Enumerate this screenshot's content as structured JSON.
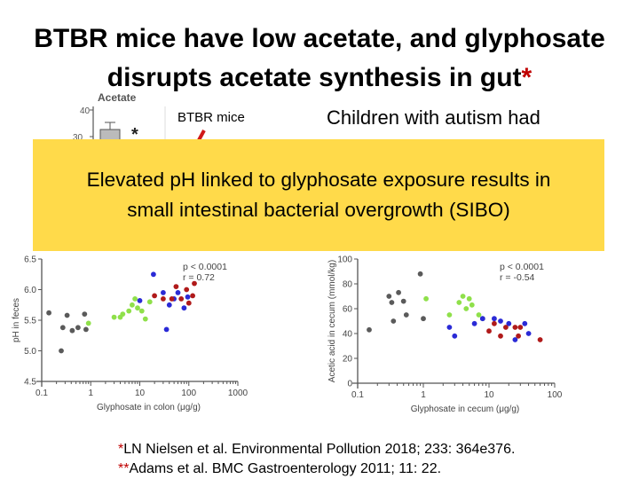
{
  "title": {
    "line1": "BTBR mice have low acetate, and glyphosate",
    "line2": "disrupts acetate synthesis in gut",
    "star": "*"
  },
  "inset": {
    "label": "Acetate",
    "yticks": [
      "40",
      "30"
    ],
    "marker": "*"
  },
  "btbr_label": "BTBR mice",
  "children_text": "Children with autism had",
  "banner": {
    "line1": "Elevated pH linked to glyphosate exposure results in",
    "line2": "small intestinal bacterial overgrowth (SIBO)"
  },
  "colors": {
    "gray": "#5a5a5a",
    "green": "#8fe04a",
    "blue": "#2a2ad6",
    "red": "#b01a1a",
    "banner": "#ffda4a",
    "accent": "#c00000"
  },
  "chart_data": [
    {
      "type": "scatter",
      "xlabel": "Glyphosate in colon (μg/g)",
      "ylabel": "pH in feces",
      "xscale": "log",
      "xlim": [
        0.1,
        1000
      ],
      "ylim": [
        4.5,
        6.5
      ],
      "xticks": [
        "0.1",
        "1",
        "10",
        "100",
        "1000"
      ],
      "yticks": [
        "4.5",
        "5.0",
        "5.5",
        "6.0",
        "6.5"
      ],
      "annotation": [
        "p < 0.0001",
        "r = 0.72"
      ],
      "series": [
        {
          "color": "gray",
          "points": [
            [
              0.14,
              5.62
            ],
            [
              0.27,
              5.38
            ],
            [
              0.33,
              5.58
            ],
            [
              0.42,
              5.33
            ],
            [
              0.55,
              5.38
            ],
            [
              0.75,
              5.6
            ],
            [
              0.8,
              5.35
            ],
            [
              0.25,
              5.0
            ]
          ]
        },
        {
          "color": "green",
          "points": [
            [
              0.9,
              5.45
            ],
            [
              3,
              5.55
            ],
            [
              4,
              5.55
            ],
            [
              4.5,
              5.6
            ],
            [
              6,
              5.65
            ],
            [
              7,
              5.75
            ],
            [
              8,
              5.85
            ],
            [
              9,
              5.7
            ],
            [
              11,
              5.65
            ],
            [
              13,
              5.52
            ],
            [
              16,
              5.8
            ]
          ]
        },
        {
          "color": "blue",
          "points": [
            [
              10,
              5.82
            ],
            [
              19,
              6.25
            ],
            [
              30,
              5.95
            ],
            [
              40,
              5.75
            ],
            [
              50,
              5.85
            ],
            [
              60,
              5.95
            ],
            [
              80,
              5.7
            ],
            [
              95,
              5.88
            ],
            [
              35,
              5.35
            ]
          ]
        },
        {
          "color": "red",
          "points": [
            [
              20,
              5.9
            ],
            [
              30,
              5.85
            ],
            [
              45,
              5.85
            ],
            [
              55,
              6.05
            ],
            [
              70,
              5.85
            ],
            [
              90,
              6.0
            ],
            [
              120,
              5.9
            ],
            [
              130,
              6.1
            ],
            [
              100,
              5.78
            ]
          ]
        }
      ]
    },
    {
      "type": "scatter",
      "xlabel": "Glyphosate in cecum (μg/g)",
      "ylabel": "Acetic acid in cecum (mmol/kg)",
      "xscale": "log",
      "xlim": [
        0.1,
        100
      ],
      "ylim": [
        0,
        100
      ],
      "xticks": [
        "0.1",
        "1",
        "10",
        "100"
      ],
      "yticks": [
        "0",
        "20",
        "40",
        "60",
        "80",
        "100"
      ],
      "annotation": [
        "p < 0.0001",
        "r = -0.54"
      ],
      "series": [
        {
          "color": "gray",
          "points": [
            [
              0.15,
              43
            ],
            [
              0.3,
              70
            ],
            [
              0.33,
              65
            ],
            [
              0.35,
              50
            ],
            [
              0.42,
              73
            ],
            [
              0.5,
              66
            ],
            [
              0.55,
              55
            ],
            [
              0.9,
              88
            ],
            [
              1,
              52
            ]
          ]
        },
        {
          "color": "green",
          "points": [
            [
              1.1,
              68
            ],
            [
              2.5,
              55
            ],
            [
              3.5,
              65
            ],
            [
              4.5,
              60
            ],
            [
              5,
              68
            ],
            [
              5.5,
              63
            ],
            [
              7,
              55
            ],
            [
              8,
              52
            ],
            [
              4,
              70
            ]
          ]
        },
        {
          "color": "blue",
          "points": [
            [
              2.5,
              45
            ],
            [
              3,
              38
            ],
            [
              6,
              48
            ],
            [
              8,
              52
            ],
            [
              12,
              52
            ],
            [
              15,
              50
            ],
            [
              20,
              48
            ],
            [
              35,
              48
            ],
            [
              40,
              40
            ],
            [
              25,
              35
            ]
          ]
        },
        {
          "color": "red",
          "points": [
            [
              10,
              42
            ],
            [
              12,
              48
            ],
            [
              15,
              38
            ],
            [
              18,
              45
            ],
            [
              25,
              45
            ],
            [
              30,
              45
            ],
            [
              28,
              38
            ],
            [
              60,
              35
            ]
          ]
        }
      ]
    }
  ],
  "references": [
    {
      "marker": "*",
      "text": "LN Nielsen et al. Environmental Pollution 2018; 233: 364e376."
    },
    {
      "marker": "**",
      "text": "Adams et al. BMC Gastroenterology 2011; 11: 22."
    }
  ]
}
